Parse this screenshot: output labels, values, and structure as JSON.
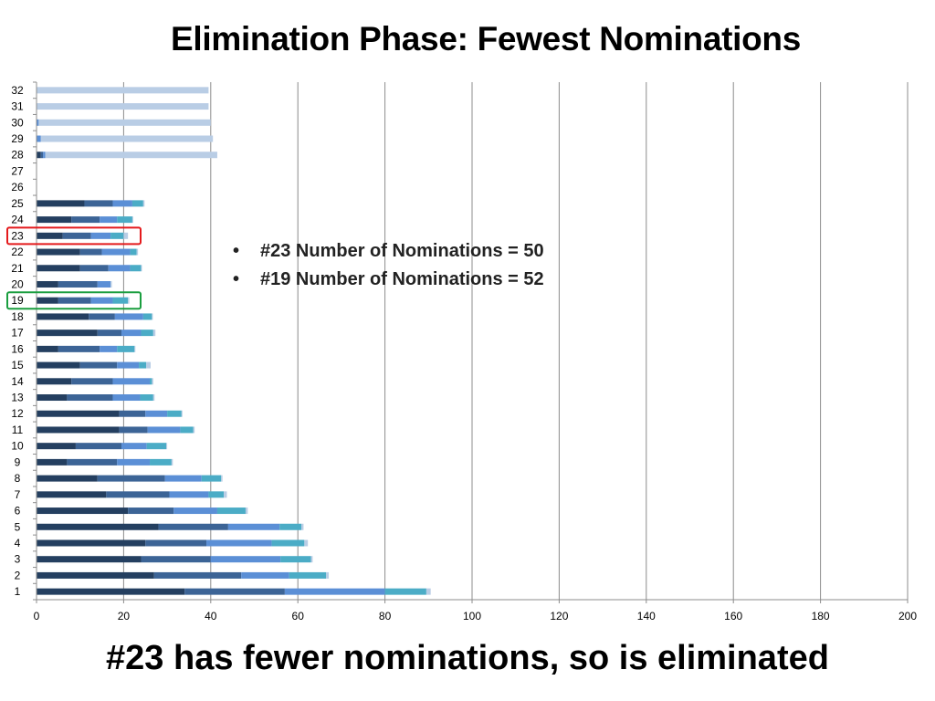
{
  "slide": {
    "title": "Elimination Phase: Fewest Nominations",
    "footer": "#23 has fewer nominations, so is eliminated",
    "notes": [
      "#23 Number of Nominations = 50",
      "#19 Number of Nominations = 52"
    ]
  },
  "chart_data": {
    "type": "bar",
    "orientation": "horizontal",
    "stacked": true,
    "title": "",
    "xlabel": "",
    "ylabel": "",
    "xlim": [
      0,
      200
    ],
    "x_ticks": [
      0,
      20,
      40,
      60,
      80,
      100,
      120,
      140,
      160,
      180,
      200
    ],
    "grid": true,
    "categories": [
      "1",
      "2",
      "3",
      "4",
      "5",
      "6",
      "7",
      "8",
      "9",
      "10",
      "11",
      "12",
      "13",
      "14",
      "15",
      "16",
      "17",
      "18",
      "19",
      "20",
      "21",
      "22",
      "23",
      "24",
      "25",
      "26",
      "27",
      "28",
      "29",
      "30",
      "31",
      "32"
    ],
    "series": [
      {
        "color": "#243f60",
        "values": [
          34,
          27,
          24,
          25,
          28,
          21,
          16,
          14,
          7,
          9,
          19,
          19,
          7,
          8,
          10,
          5,
          14,
          12,
          5,
          5,
          10,
          10,
          6,
          8,
          11,
          0,
          0,
          1,
          0,
          0,
          0,
          0
        ]
      },
      {
        "color": "#3c6496",
        "values": [
          23,
          20,
          16,
          14,
          16,
          10.5,
          14.5,
          15.5,
          11.5,
          10.5,
          6.5,
          6,
          10.5,
          9.5,
          8.5,
          9.5,
          5.5,
          6,
          7.5,
          9,
          6.5,
          5,
          6.5,
          6.5,
          6.5,
          0,
          0,
          0.5,
          0,
          0,
          0,
          0
        ]
      },
      {
        "color": "#5b8fd6",
        "values": [
          23,
          11,
          16,
          15,
          11.8,
          10,
          9,
          8.4,
          7.5,
          5.8,
          7.5,
          5,
          6.3,
          8.5,
          5,
          4,
          4.5,
          6.5,
          5,
          3,
          5,
          6.5,
          4.5,
          4,
          4.5,
          0,
          0,
          0.5,
          1,
          0.5,
          0,
          0
        ]
      },
      {
        "color": "#4bacc6",
        "values": [
          9.5,
          8.5,
          7,
          7.5,
          5,
          6.5,
          3.5,
          4.5,
          5,
          4.5,
          3,
          3.3,
          3,
          0.5,
          1.7,
          4,
          2.8,
          2,
          3.5,
          0,
          2.5,
          1.5,
          3,
          3.5,
          2.5,
          0,
          0,
          0,
          0,
          0,
          0,
          0
        ]
      },
      {
        "color": "#b9cde5",
        "values": [
          1,
          0.6,
          0.4,
          0.8,
          0.5,
          0.5,
          0.7,
          0.3,
          0.3,
          0.2,
          0.3,
          0.2,
          0.3,
          0.3,
          1,
          0.2,
          0.5,
          0.2,
          0.3,
          0.3,
          0.2,
          0.3,
          1,
          0.2,
          0.3,
          0,
          0,
          39.5,
          39.5,
          39.5,
          39.5,
          39.5
        ]
      }
    ],
    "highlights": [
      {
        "category": "23",
        "color": "#e41a1c"
      },
      {
        "category": "19",
        "color": "#1a9e3f"
      }
    ]
  }
}
